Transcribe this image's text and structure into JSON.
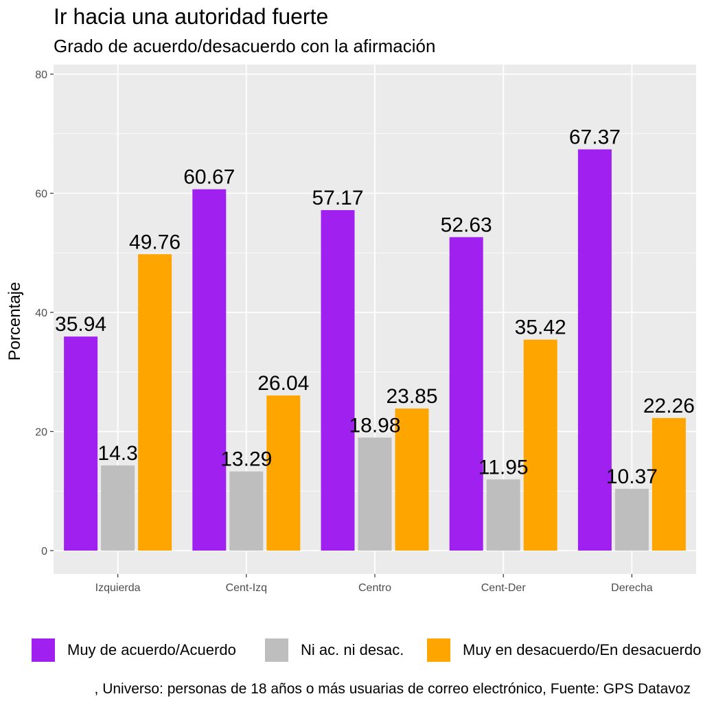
{
  "chart_data": {
    "type": "bar",
    "title": "Ir hacia una autoridad fuerte",
    "subtitle": "Grado de acuerdo/desacuerdo con la afirmación",
    "xlabel": "",
    "ylabel": "Porcentaje",
    "ylim": [
      0,
      80
    ],
    "yticks": [
      0,
      20,
      40,
      60,
      80
    ],
    "grid": true,
    "legend_position": "bottom",
    "categories": [
      "Izquierda",
      "Cent-Izq",
      "Centro",
      "Cent-Der",
      "Derecha"
    ],
    "series": [
      {
        "name": "Muy de acuerdo/Acuerdo",
        "color": "#A020F0",
        "values": [
          35.94,
          60.67,
          57.17,
          52.63,
          67.37
        ],
        "labels": [
          "35.94",
          "60.67",
          "57.17",
          "52.63",
          "67.37"
        ]
      },
      {
        "name": "Ni ac. ni desac.",
        "color": "#BEBEBE",
        "values": [
          14.3,
          13.29,
          18.98,
          11.95,
          10.37
        ],
        "labels": [
          "14.3",
          "13.29",
          "18.98",
          "11.95",
          "10.37"
        ]
      },
      {
        "name": "Muy en desacuerdo/En desacuerdo",
        "color": "#FFA500",
        "values": [
          49.76,
          26.04,
          23.85,
          35.42,
          22.26
        ],
        "labels": [
          "49.76",
          "26.04",
          "23.85",
          "35.42",
          "22.26"
        ]
      }
    ],
    "caption": ", Universo: personas de 18 años o más usuarias de correo electrónico, Fuente: GPS Datavoz"
  },
  "colors": {
    "panel_background": "#EBEBEB",
    "grid": "#FFFFFF",
    "tick_text": "#4D4D4D"
  }
}
